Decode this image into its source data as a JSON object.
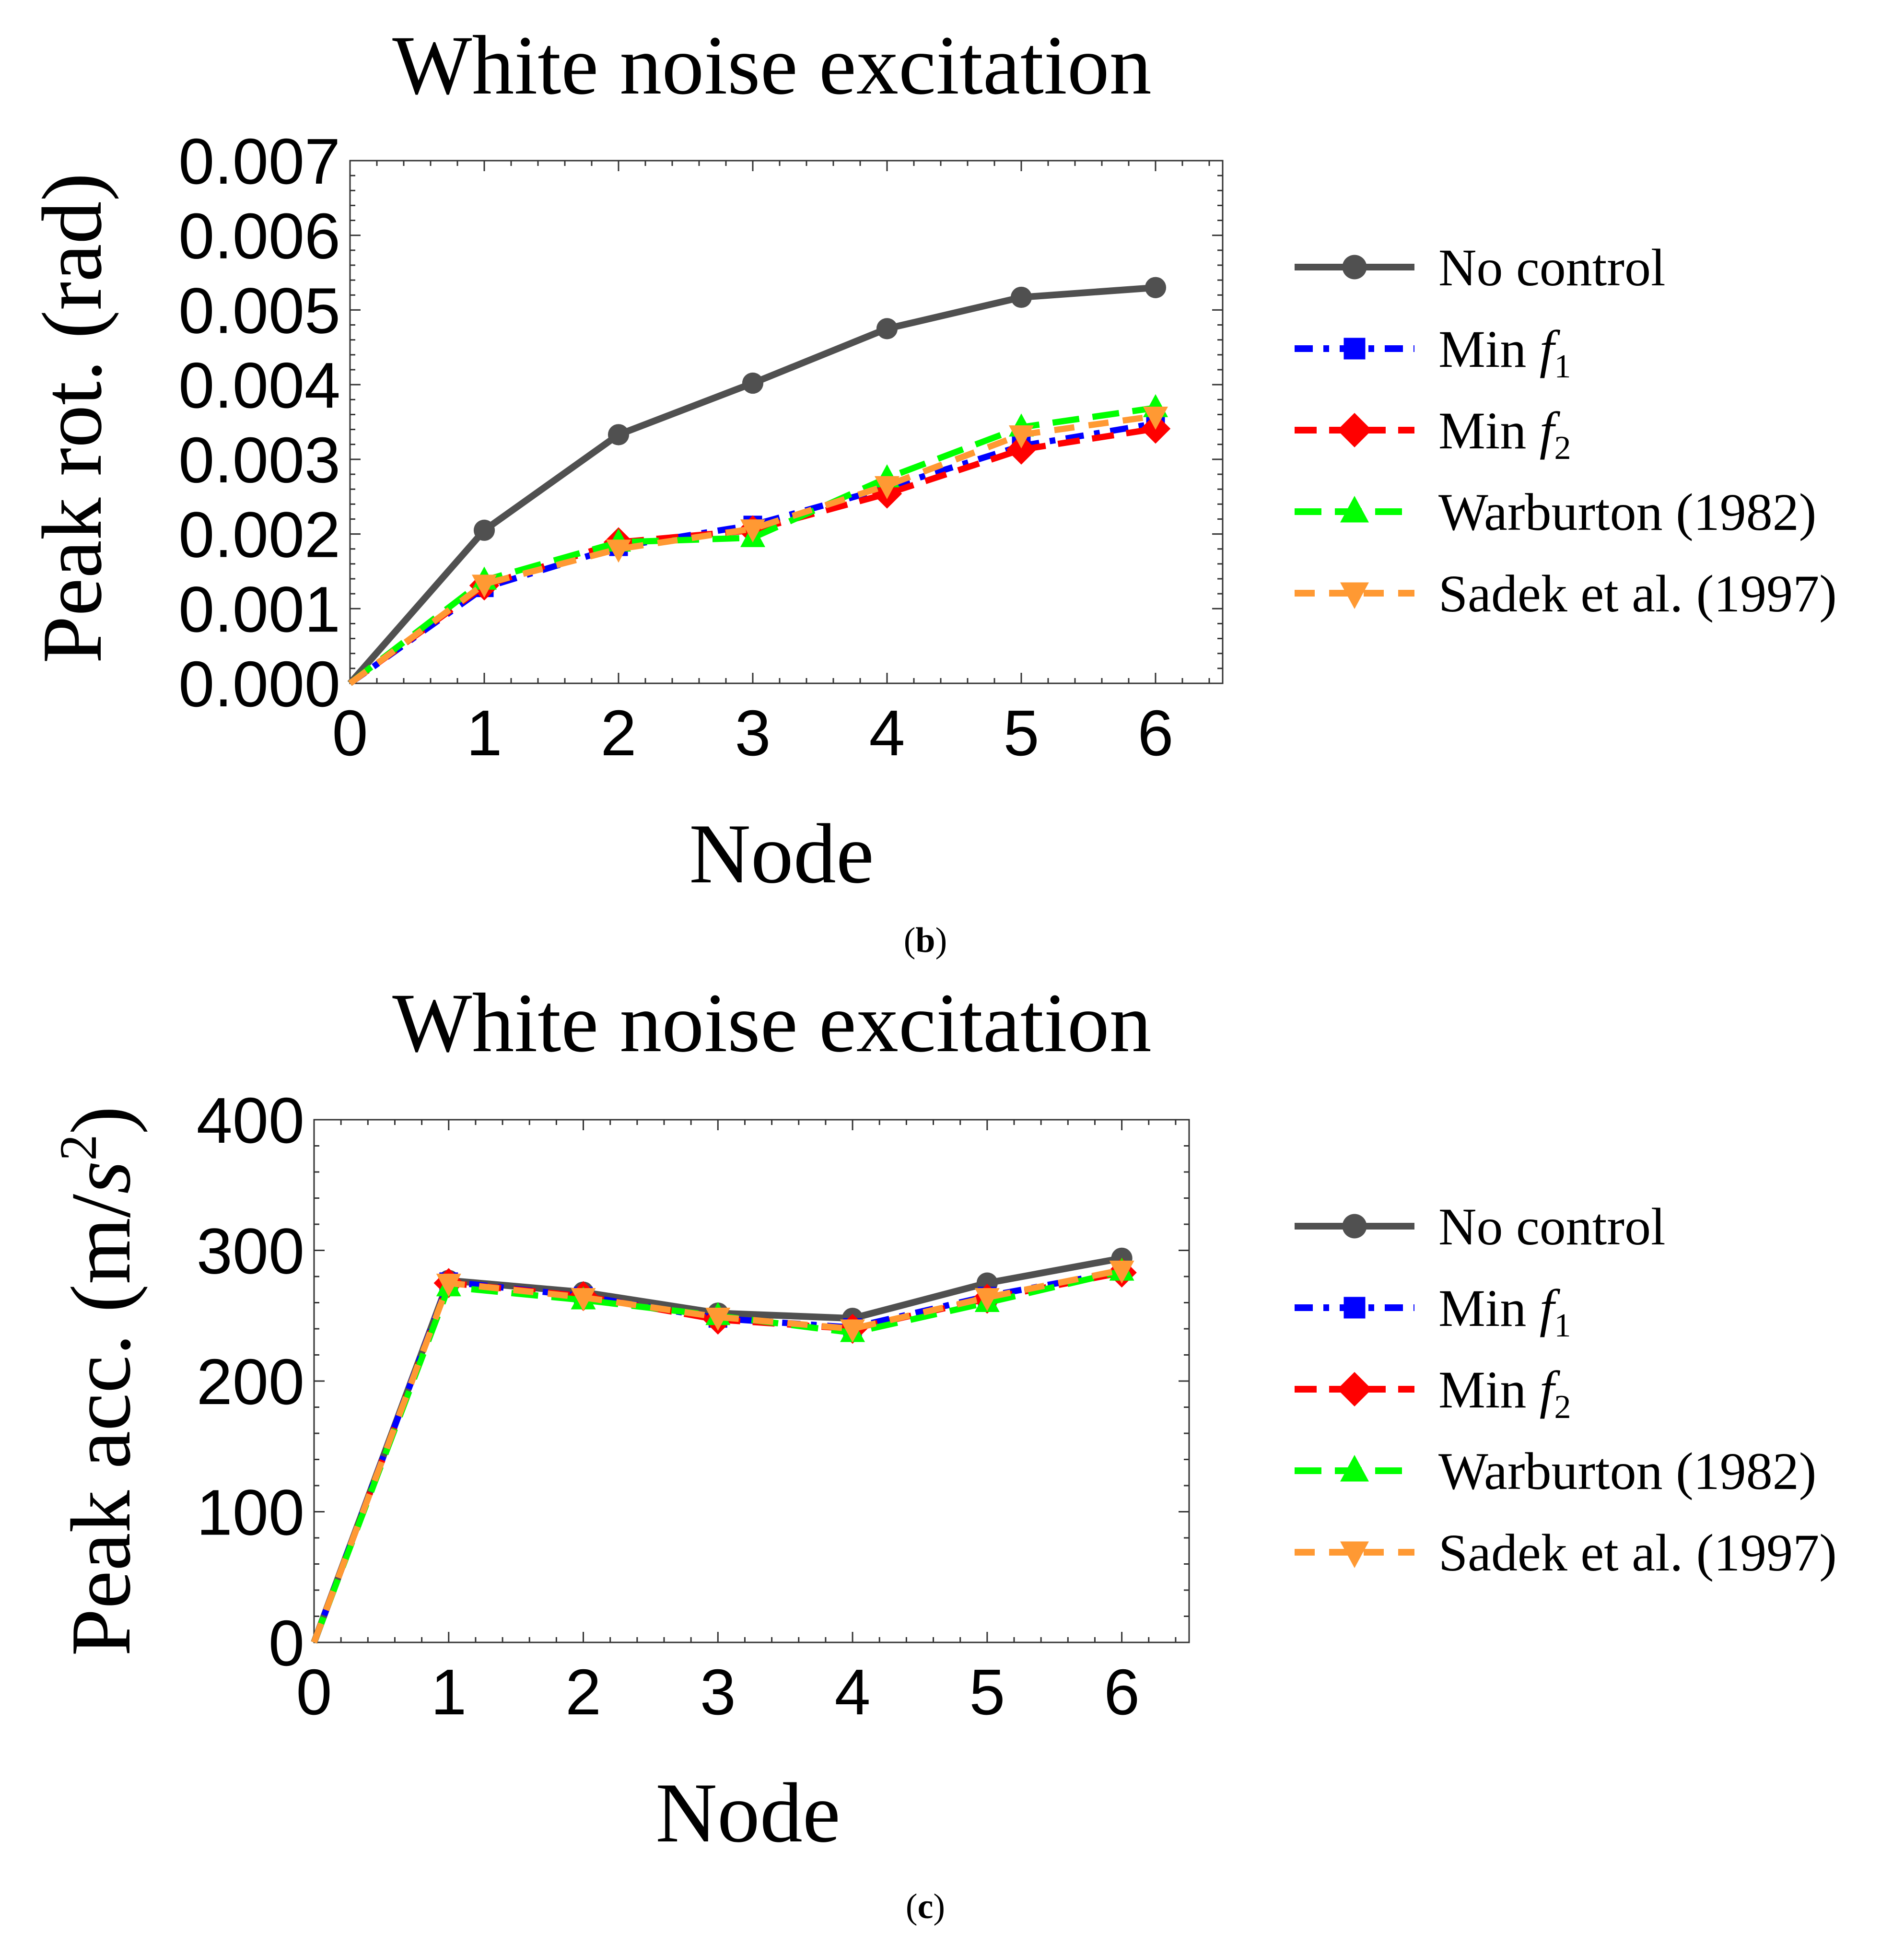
{
  "figure": {
    "panels": [
      {
        "label_open": "(",
        "label_letter": "b",
        "label_close": ")"
      },
      {
        "label_open": "(",
        "label_letter": "c",
        "label_close": ")"
      }
    ]
  },
  "chart_data": [
    {
      "type": "line",
      "title": "White noise excitation",
      "xlabel": "Node",
      "ylabel": "Peak rot. (rad)",
      "xlim": [
        0,
        6.5
      ],
      "ylim": [
        0,
        0.007
      ],
      "xticks": [
        "0",
        "1",
        "2",
        "3",
        "4",
        "5",
        "6"
      ],
      "xtick_values": [
        0,
        1,
        2,
        3,
        4,
        5,
        6
      ],
      "yticks": [
        "0.000",
        "0.001",
        "0.002",
        "0.003",
        "0.004",
        "0.005",
        "0.006",
        "0.007"
      ],
      "ytick_values": [
        0,
        0.001,
        0.002,
        0.003,
        0.004,
        0.005,
        0.006,
        0.007
      ],
      "x": [
        0,
        1,
        2,
        3,
        4,
        5,
        6
      ],
      "series": [
        {
          "name": "No control",
          "legend_main": "No control",
          "legend_italic": "",
          "legend_sub": "",
          "color": "#505050",
          "dash": "",
          "marker": "circle",
          "values": [
            0,
            0.00205,
            0.00333,
            0.00402,
            0.00475,
            0.00517,
            0.0053
          ]
        },
        {
          "name": "Min f1",
          "legend_main": "Min ",
          "legend_italic": "f",
          "legend_sub": "1",
          "color": "#0000ff",
          "dash": "38,22,12,22",
          "marker": "square",
          "values": [
            0,
            0.00128,
            0.00183,
            0.00212,
            0.00262,
            0.00318,
            0.00348
          ]
        },
        {
          "name": "Min f2",
          "legend_main": "Min ",
          "legend_italic": "f",
          "legend_sub": "2",
          "color": "#ff0000",
          "dash": "46,26",
          "marker": "diamond",
          "values": [
            0,
            0.00131,
            0.00189,
            0.00205,
            0.00254,
            0.00313,
            0.00341
          ]
        },
        {
          "name": "Warburton (1982)",
          "legend_main": "Warburton (1982)",
          "legend_italic": "",
          "legend_sub": "",
          "color": "#00ff00",
          "dash": "56,28",
          "marker": "triangle-up",
          "values": [
            0,
            0.00138,
            0.00189,
            0.00195,
            0.00275,
            0.00343,
            0.00369
          ]
        },
        {
          "name": "Sadek et al. (1997)",
          "legend_main": "Sadek et al. (1997)",
          "legend_italic": "",
          "legend_sub": "",
          "color": "#ff9933",
          "dash": "42,30",
          "marker": "triangle-down",
          "values": [
            0,
            0.00133,
            0.0018,
            0.00207,
            0.00265,
            0.00333,
            0.00358
          ]
        }
      ]
    },
    {
      "type": "line",
      "title": "White noise excitation",
      "xlabel": "Node",
      "ylabel_main": "Peak acc. (m/",
      "ylabel_italic": "s",
      "ylabel_sup": "2",
      "ylabel_close": ")",
      "xlim": [
        0,
        6.5
      ],
      "ylim": [
        0,
        400
      ],
      "xticks": [
        "0",
        "1",
        "2",
        "3",
        "4",
        "5",
        "6"
      ],
      "xtick_values": [
        0,
        1,
        2,
        3,
        4,
        5,
        6
      ],
      "yticks": [
        "0",
        "100",
        "200",
        "300",
        "400"
      ],
      "ytick_values": [
        0,
        100,
        200,
        300,
        400
      ],
      "x": [
        0,
        1,
        2,
        3,
        4,
        5,
        6
      ],
      "series": [
        {
          "name": "No control",
          "legend_main": "No control",
          "legend_italic": "",
          "legend_sub": "",
          "color": "#505050",
          "dash": "",
          "marker": "circle",
          "values": [
            0,
            277,
            268,
            252,
            248,
            275,
            294
          ]
        },
        {
          "name": "Min f1",
          "legend_main": "Min ",
          "legend_italic": "f",
          "legend_sub": "1",
          "color": "#0000ff",
          "dash": "38,22,12,22",
          "marker": "square",
          "values": [
            0,
            276,
            265,
            248,
            241,
            265,
            284
          ]
        },
        {
          "name": "Min f2",
          "legend_main": "Min ",
          "legend_italic": "f",
          "legend_sub": "2",
          "color": "#ff0000",
          "dash": "46,26",
          "marker": "diamond",
          "values": [
            0,
            275,
            265,
            247,
            240,
            263,
            283
          ]
        },
        {
          "name": "Warburton (1982)",
          "legend_main": "Warburton (1982)",
          "legend_italic": "",
          "legend_sub": "",
          "color": "#00ff00",
          "dash": "56,28",
          "marker": "triangle-up",
          "values": [
            0,
            272,
            262,
            250,
            237,
            260,
            284
          ]
        },
        {
          "name": "Sadek et al. (1997)",
          "legend_main": "Sadek et al. (1997)",
          "legend_italic": "",
          "legend_sub": "",
          "color": "#ff9933",
          "dash": "42,30",
          "marker": "triangle-down",
          "values": [
            0,
            275,
            264,
            249,
            240,
            264,
            285
          ]
        }
      ]
    }
  ]
}
